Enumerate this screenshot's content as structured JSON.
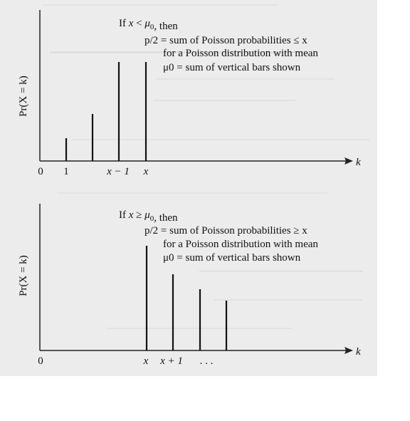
{
  "panels": [
    {
      "id": "top",
      "condition_line": "If x < μ0, then",
      "text_lines": [
        "p/2 = sum of Poisson probabilities ≤ x",
        "for a Poisson distribution with mean",
        "μ0 = sum of vertical bars shown"
      ],
      "ylabel": "Pr(X = k)",
      "xlabel": "k",
      "tick_labels": [
        "0",
        "1",
        "x − 1",
        "x"
      ]
    },
    {
      "id": "bottom",
      "condition_line": "If x ≥ μ0, then",
      "text_lines": [
        "p/2 = sum of Poisson probabilities ≥ x",
        "for a Poisson distribution with mean",
        "μ0 = sum of vertical bars shown"
      ],
      "ylabel": "Pr(X = k)",
      "xlabel": "k",
      "tick_labels": [
        "0",
        "x",
        "x + 1",
        ". . ."
      ]
    }
  ]
}
